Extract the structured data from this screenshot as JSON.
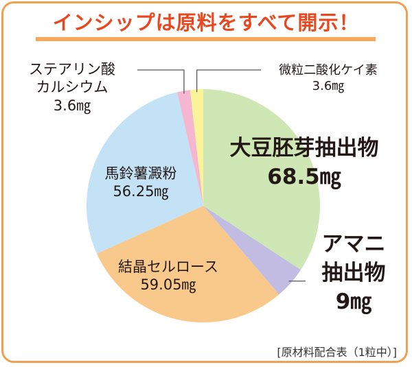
{
  "title": "インシップは原料をすべて開示！",
  "footnote": "[原材料配合表（1粒中）]",
  "colors": {
    "title": "#e8481f",
    "frame": "#f0a050",
    "underline": "#f7a85f"
  },
  "chart_data": {
    "type": "pie",
    "unit": "mg",
    "slices": [
      {
        "name": "大豆胚芽抽出物",
        "value": 68.5,
        "value_label": "68.5㎎",
        "color": "#cfe7b4"
      },
      {
        "name": "アマニ抽出物",
        "value": 9,
        "value_label": "9㎎",
        "color": "#c2bbe2"
      },
      {
        "name": "結晶セルロース",
        "value": 59.05,
        "value_label": "59.05㎎",
        "color": "#f8c98b"
      },
      {
        "name": "馬鈴薯澱粉",
        "value": 56.25,
        "value_label": "56.25㎎",
        "color": "#c3e2f5"
      },
      {
        "name": "ステアリン酸カルシウム",
        "value": 3.6,
        "value_label": "3.6㎎",
        "color": "#f4b7cf"
      },
      {
        "name": "微粒二酸化ケイ素",
        "value": 3.6,
        "value_label": "3.6㎎",
        "color": "#fbf39a"
      }
    ],
    "labels": {
      "soy": {
        "line1": "大豆胚芽抽出物",
        "line2": "68.5㎎"
      },
      "flax": {
        "line1": "アマニ",
        "line2": "抽出物",
        "line3": "9㎎"
      },
      "cellulose": {
        "line1": "結晶セルロース",
        "line2": "59.05㎎"
      },
      "starch": {
        "line1": "馬鈴薯澱粉",
        "line2": "56.25㎎"
      },
      "stearate": {
        "line1": "ステアリン酸",
        "line2": "カルシウム",
        "line3": "3.6㎎"
      },
      "silica": {
        "line1": "微粒二酸化ケイ素",
        "line2": "3.6㎎"
      }
    }
  }
}
